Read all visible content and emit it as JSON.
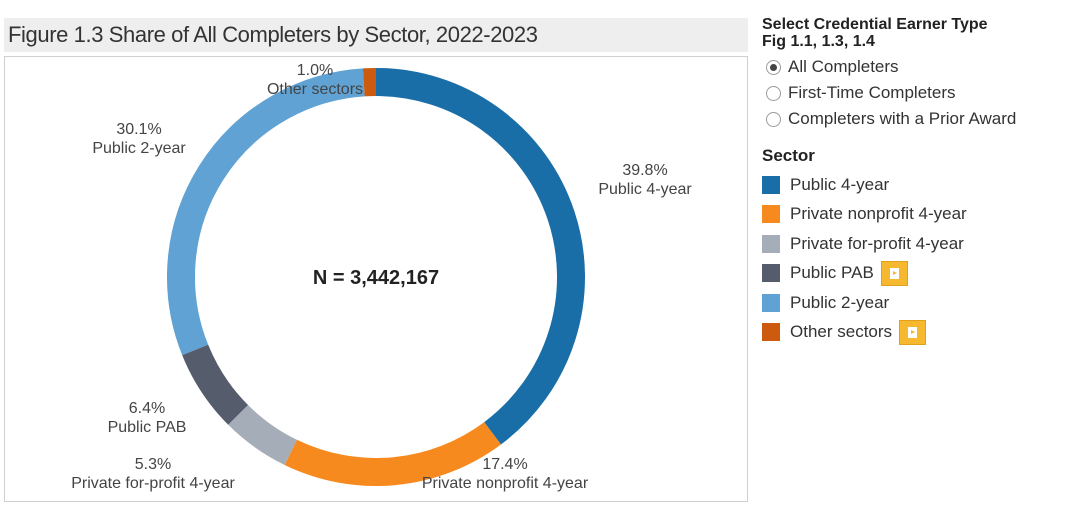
{
  "figure": {
    "title": "Figure 1.3 Share of All Completers by Sector, 2022-2023",
    "center_label": "N = 3,442,167"
  },
  "chart_data": {
    "type": "pie",
    "title": "Figure 1.3 Share of All Completers by Sector, 2022-2023",
    "total_label": "N = 3,442,167",
    "slices": [
      {
        "name": "Public 4-year",
        "value": 39.8,
        "label": "39.8%",
        "color": "#1a6ea8"
      },
      {
        "name": "Private nonprofit 4-year",
        "value": 17.4,
        "label": "17.4%",
        "color": "#f68a1e"
      },
      {
        "name": "Private for-profit 4-year",
        "value": 5.3,
        "label": "5.3%",
        "color": "#a5adb8"
      },
      {
        "name": "Public PAB",
        "value": 6.4,
        "label": "6.4%",
        "color": "#555c6b"
      },
      {
        "name": "Public 2-year",
        "value": 30.1,
        "label": "30.1%",
        "color": "#5fa2d3"
      },
      {
        "name": "Other sectors",
        "value": 1.0,
        "label": "1.0%",
        "color": "#cc5a0f"
      }
    ]
  },
  "panel": {
    "heading_line1": "Select Credential Earner Type",
    "heading_line2": "Fig 1.1, 1.3, 1.4",
    "options": [
      {
        "label": "All Completers",
        "selected": true
      },
      {
        "label": "First-Time Completers",
        "selected": false
      },
      {
        "label": "Completers with a Prior Award",
        "selected": false
      }
    ],
    "legend_heading": "Sector",
    "legend": [
      {
        "label": "Public 4-year",
        "color": "#1a6ea8",
        "note_icon": false
      },
      {
        "label": "Private nonprofit 4-year",
        "color": "#f68a1e",
        "note_icon": false
      },
      {
        "label": "Private for-profit 4-year",
        "color": "#a5adb8",
        "note_icon": false
      },
      {
        "label": "Public PAB",
        "color": "#555c6b",
        "note_icon": true
      },
      {
        "label": "Public 2-year",
        "color": "#5fa2d3",
        "note_icon": false
      },
      {
        "label": "Other sectors",
        "color": "#cc5a0f",
        "note_icon": true
      }
    ]
  }
}
